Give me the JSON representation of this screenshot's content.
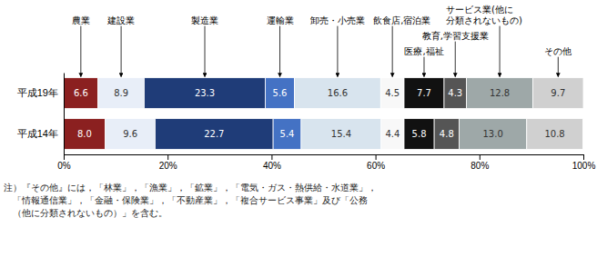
{
  "chart_data": {
    "type": "bar",
    "orientation": "horizontal",
    "stacked": true,
    "data_labels": true,
    "categories": [
      "平成19年",
      "平成14年"
    ],
    "series": [
      {
        "name": "農業",
        "color": "#8B2020",
        "values": [
          6.6,
          8.0
        ],
        "value_labels": [
          "6.6",
          "8.0"
        ]
      },
      {
        "name": "建設業",
        "color": "#E8EEF8",
        "values": [
          8.9,
          9.6
        ],
        "value_labels": [
          "8.9",
          "9.6"
        ]
      },
      {
        "name": "製造業",
        "color": "#1F3C78",
        "values": [
          23.3,
          22.7
        ],
        "value_labels": [
          "23.3",
          "22.7"
        ]
      },
      {
        "name": "運輸業",
        "color": "#4472C4",
        "values": [
          5.6,
          5.4
        ],
        "value_labels": [
          "5.6",
          "5.4"
        ]
      },
      {
        "name": "卸売・小売業",
        "color": "#D8E4EE",
        "values": [
          16.6,
          15.4
        ],
        "value_labels": [
          "16.6",
          "15.4"
        ]
      },
      {
        "name": "飲食店,宿泊業",
        "color": "#F8F8F8",
        "values": [
          4.5,
          4.4
        ],
        "value_labels": [
          "4.5",
          "4.4"
        ]
      },
      {
        "name": "医療,福祉",
        "color": "#111111",
        "values": [
          7.7,
          5.8
        ],
        "value_labels": [
          "7.7",
          "5.8"
        ]
      },
      {
        "name": "教育,学習支援業",
        "color": "#555555",
        "values": [
          4.3,
          4.8
        ],
        "value_labels": [
          "4.3",
          "4.8"
        ]
      },
      {
        "name": "サービス業(他に\n分類されないもの)",
        "color": "#9EA8A8",
        "values": [
          12.8,
          13.0
        ],
        "value_labels": [
          "12.8",
          "13.0"
        ]
      },
      {
        "name": "その他",
        "color": "#D0D0D0",
        "values": [
          9.7,
          10.8
        ],
        "value_labels": [
          "9.7",
          "10.8"
        ]
      }
    ],
    "xlim": [
      0,
      100
    ],
    "xticks": [
      {
        "value": 0,
        "label": "0%"
      },
      {
        "value": 20,
        "label": "20%"
      },
      {
        "value": 40,
        "label": "40%"
      },
      {
        "value": 60,
        "label": "60%"
      },
      {
        "value": 80,
        "label": "80%"
      },
      {
        "value": 100,
        "label": "100%"
      }
    ],
    "note": [
      "注）『その他』には，「林業」，「漁業」，「鉱業」，「電気・ガス・熱供給・水道業」，",
      "　「情報通信業」，「金融・保険業」，「不動産業」，「複合サービス事業」及び「公務",
      "　（他に分類されないもの）」を含む。"
    ]
  }
}
